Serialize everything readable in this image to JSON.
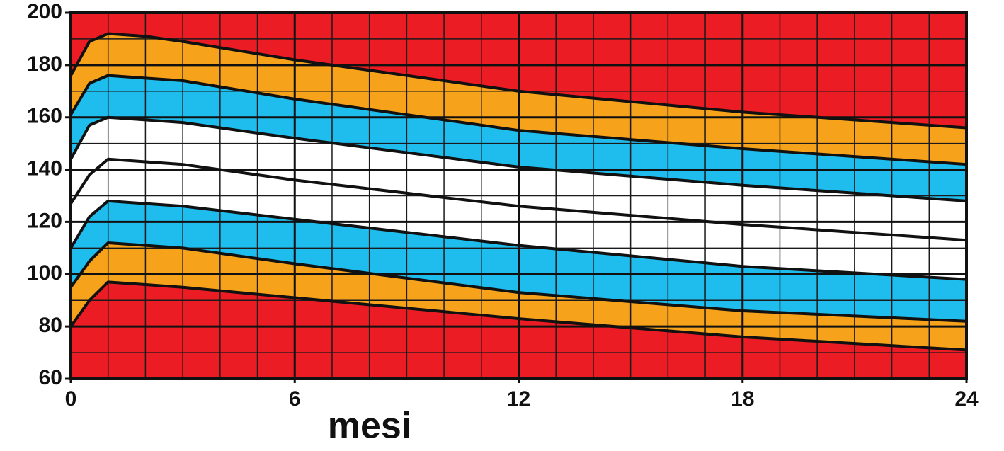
{
  "chart_data": {
    "type": "line",
    "x_label": "mesi",
    "x": [
      0,
      0.5,
      1,
      2,
      3,
      6,
      12,
      18,
      24
    ],
    "series": [
      {
        "color": "#111111",
        "values": [
          176,
          189,
          192,
          191,
          189,
          182,
          170,
          162,
          156
        ]
      },
      {
        "color": "#111111",
        "values": [
          161,
          173,
          176,
          175,
          174,
          167,
          155,
          148,
          142
        ]
      },
      {
        "color": "#111111",
        "values": [
          144,
          157,
          160,
          159,
          158,
          152,
          141,
          134,
          128
        ]
      },
      {
        "color": "#111111",
        "values": [
          127,
          138,
          144,
          143,
          142,
          136,
          126,
          119,
          113
        ]
      },
      {
        "color": "#111111",
        "values": [
          110,
          122,
          128,
          127,
          126,
          121,
          111,
          103,
          98
        ]
      },
      {
        "color": "#111111",
        "values": [
          95,
          105,
          112,
          111,
          110,
          104,
          93,
          86,
          82
        ]
      },
      {
        "color": "#111111",
        "values": [
          80,
          90,
          97,
          96,
          95,
          91,
          83,
          76,
          71
        ]
      }
    ],
    "band_colors": [
      "#ec1c24",
      "#f7a21b",
      "#1ebdee",
      "#ffffff",
      "#ffffff",
      "#1ebdee",
      "#f7a21b",
      "#ec1c24"
    ],
    "xlim": [
      0,
      24
    ],
    "ylim": [
      60,
      200
    ],
    "xticks": [
      0,
      6,
      12,
      18,
      24
    ],
    "yticks": [
      60,
      80,
      100,
      120,
      140,
      160,
      180,
      200
    ],
    "grid": true
  }
}
